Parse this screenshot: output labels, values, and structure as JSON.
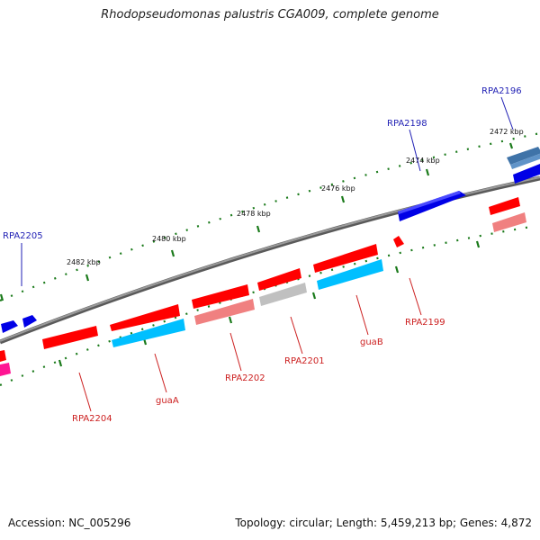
{
  "map": {
    "title": "Rhodopseudomonas palustris CGA009, complete genome",
    "accession": "Accession: NC_005296",
    "summary": "Topology: circular; Length: 5,459,213 bp; Genes: 4,872"
  },
  "colors": {
    "backbone": "#808080",
    "tick_track": "#1a7a1a",
    "forward_label": "#1f1fb4",
    "reverse_label": "#cc1f1f"
  },
  "scale_ticks": [
    {
      "label": "2472 kbp"
    },
    {
      "label": "2474 kbp"
    },
    {
      "label": "2476 kbp"
    },
    {
      "label": "2478 kbp"
    },
    {
      "label": "2480 kbp"
    },
    {
      "label": "2482 kbp"
    }
  ],
  "gene_labels": [
    {
      "name": "RPA2196",
      "strand": "forward"
    },
    {
      "name": "RPA2198",
      "strand": "forward"
    },
    {
      "name": "RPA2205",
      "strand": "forward"
    },
    {
      "name": "RPA2199",
      "strand": "reverse"
    },
    {
      "name": "guaB",
      "strand": "reverse"
    },
    {
      "name": "RPA2201",
      "strand": "reverse"
    },
    {
      "name": "RPA2202",
      "strand": "reverse"
    },
    {
      "name": "guaA",
      "strand": "reverse"
    },
    {
      "name": "RPA2204",
      "strand": "reverse"
    }
  ]
}
